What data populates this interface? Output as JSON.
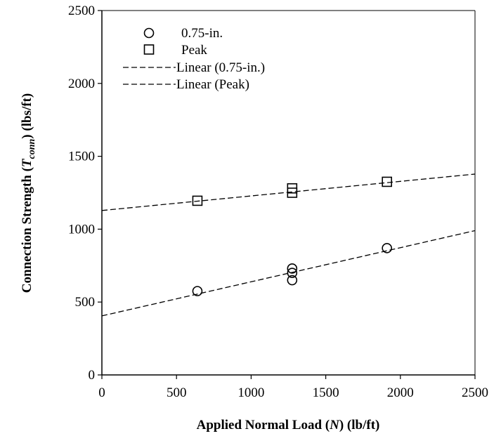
{
  "chart_data": {
    "type": "scatter",
    "xlabel_main": "Applied Normal Load (",
    "xlabel_var": "N",
    "xlabel_unit": ") (lb/ft)",
    "ylabel_main": "Connection Strength (",
    "ylabel_var": "T",
    "ylabel_sub": "conn",
    "ylabel_unit": ") (lbs/ft)",
    "xlim": [
      0,
      2500
    ],
    "ylim": [
      0,
      2500
    ],
    "xticks": [
      0,
      500,
      1000,
      1500,
      2000,
      2500
    ],
    "yticks": [
      0,
      500,
      1000,
      1500,
      2000,
      2500
    ],
    "grid": false,
    "legend_position": "top-left",
    "series": [
      {
        "name": "0.75-in.",
        "marker": "circle",
        "points": [
          [
            640,
            575
          ],
          [
            1275,
            650
          ],
          [
            1275,
            700
          ],
          [
            1275,
            730
          ],
          [
            1910,
            870
          ]
        ]
      },
      {
        "name": "Peak",
        "marker": "square",
        "points": [
          [
            640,
            1195
          ],
          [
            1275,
            1250
          ],
          [
            1275,
            1280
          ],
          [
            1910,
            1325
          ]
        ]
      }
    ],
    "trendlines": [
      {
        "name": "Linear (0.75-in.)",
        "intercept": 405,
        "slope": 0.234
      },
      {
        "name": "Linear (Peak)",
        "intercept": 1128,
        "slope": 0.1
      }
    ],
    "colors": {
      "marker_stroke": "#000000",
      "line": "#000000"
    }
  }
}
